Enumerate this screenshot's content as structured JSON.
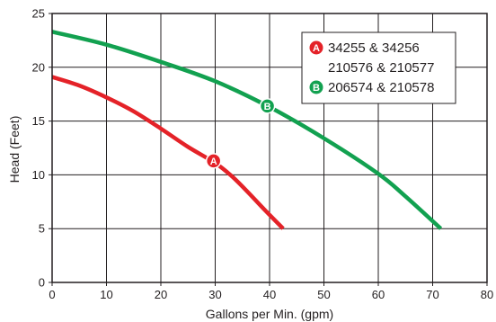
{
  "chart_data": {
    "type": "line",
    "title": "",
    "xlabel": "Gallons per Min. (gpm)",
    "ylabel": "Head (Feet)",
    "xlim": [
      0,
      80
    ],
    "ylim": [
      0,
      25
    ],
    "xticks": [
      "0",
      "10",
      "20",
      "30",
      "40",
      "50",
      "60",
      "70",
      "80"
    ],
    "yticks": [
      "0",
      "5",
      "10",
      "15",
      "20",
      "25"
    ],
    "grid": true,
    "legend_position": "top-right",
    "series": [
      {
        "name": "A",
        "label_lines": [
          "34255 & 34256",
          "210576 & 210577"
        ],
        "color": "#e42228",
        "marker_at": [
          29.7,
          11.3
        ],
        "points": [
          [
            0,
            19.1
          ],
          [
            5,
            18.3
          ],
          [
            10,
            17.2
          ],
          [
            15,
            15.9
          ],
          [
            20,
            14.3
          ],
          [
            25,
            12.6
          ],
          [
            30,
            11.1
          ],
          [
            33,
            9.9
          ],
          [
            36,
            8.4
          ],
          [
            39,
            6.8
          ],
          [
            42.5,
            5.0
          ]
        ]
      },
      {
        "name": "B",
        "label_lines": [
          "206574 & 210578"
        ],
        "color": "#12a150",
        "marker_at": [
          39.6,
          16.4
        ],
        "points": [
          [
            0,
            23.3
          ],
          [
            10,
            22.1
          ],
          [
            20,
            20.5
          ],
          [
            30,
            18.7
          ],
          [
            40,
            16.3
          ],
          [
            50,
            13.4
          ],
          [
            60,
            10.1
          ],
          [
            65,
            8.0
          ],
          [
            71.5,
            5.0
          ]
        ]
      }
    ]
  }
}
